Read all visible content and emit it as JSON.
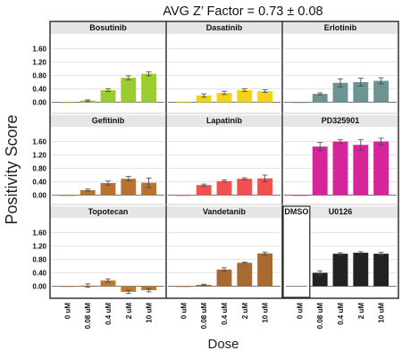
{
  "chart_data": {
    "type": "bar",
    "title": "AVG Z’ Factor = 0.73 ± 0.08",
    "xlabel": "Dose",
    "ylabel": "Positivity Score",
    "categories": [
      "0 uM",
      "0.08 uM",
      "0.4 uM",
      "2 uM",
      "10 uM"
    ],
    "yticks": [
      "1.60",
      "1.20",
      "0.80",
      "0.40",
      "0.00"
    ],
    "ylim": [
      -0.2,
      1.8
    ],
    "grid": true,
    "panels": [
      {
        "name": "Bosutinib",
        "color": "#9ACD32",
        "values": [
          0.0,
          0.05,
          0.36,
          0.73,
          0.85
        ],
        "errors": [
          0.0,
          0.02,
          0.04,
          0.06,
          0.06
        ]
      },
      {
        "name": "Dasatinib",
        "color": "#F2D21B",
        "values": [
          0.0,
          0.2,
          0.28,
          0.36,
          0.33
        ],
        "errors": [
          0.0,
          0.05,
          0.05,
          0.04,
          0.04
        ]
      },
      {
        "name": "Erlotinib",
        "color": "#6E9393",
        "values": [
          0.0,
          0.25,
          0.58,
          0.6,
          0.64
        ],
        "errors": [
          0.0,
          0.03,
          0.12,
          0.12,
          0.09
        ]
      },
      {
        "name": "Gefitinib",
        "color": "#B87333",
        "values": [
          0.0,
          0.15,
          0.36,
          0.49,
          0.37
        ],
        "errors": [
          0.0,
          0.03,
          0.06,
          0.07,
          0.14
        ]
      },
      {
        "name": "Lapatinib",
        "color": "#F05050",
        "values": [
          0.0,
          0.3,
          0.42,
          0.49,
          0.5
        ],
        "errors": [
          0.0,
          0.03,
          0.03,
          0.03,
          0.1
        ]
      },
      {
        "name": "PD325901",
        "color": "#D6249A",
        "values": [
          0.0,
          1.45,
          1.6,
          1.5,
          1.6
        ],
        "errors": [
          0.0,
          0.12,
          0.06,
          0.16,
          0.1
        ]
      },
      {
        "name": "Topotecan",
        "color": "#C07A2E",
        "values": [
          0.0,
          0.02,
          0.17,
          -0.17,
          -0.12
        ],
        "errors": [
          0.0,
          0.05,
          0.05,
          0.05,
          0.05
        ]
      },
      {
        "name": "Vandetanib",
        "color": "#A86A32",
        "values": [
          0.0,
          0.04,
          0.5,
          0.7,
          0.98
        ],
        "errors": [
          0.0,
          0.02,
          0.05,
          0.02,
          0.04
        ]
      },
      {
        "name": "U0126",
        "color": "#222222",
        "inset_label": "DMSO",
        "values": [
          0.0,
          0.4,
          0.97,
          1.0,
          0.97
        ],
        "errors": [
          0.0,
          0.06,
          0.03,
          0.03,
          0.04
        ]
      }
    ]
  }
}
